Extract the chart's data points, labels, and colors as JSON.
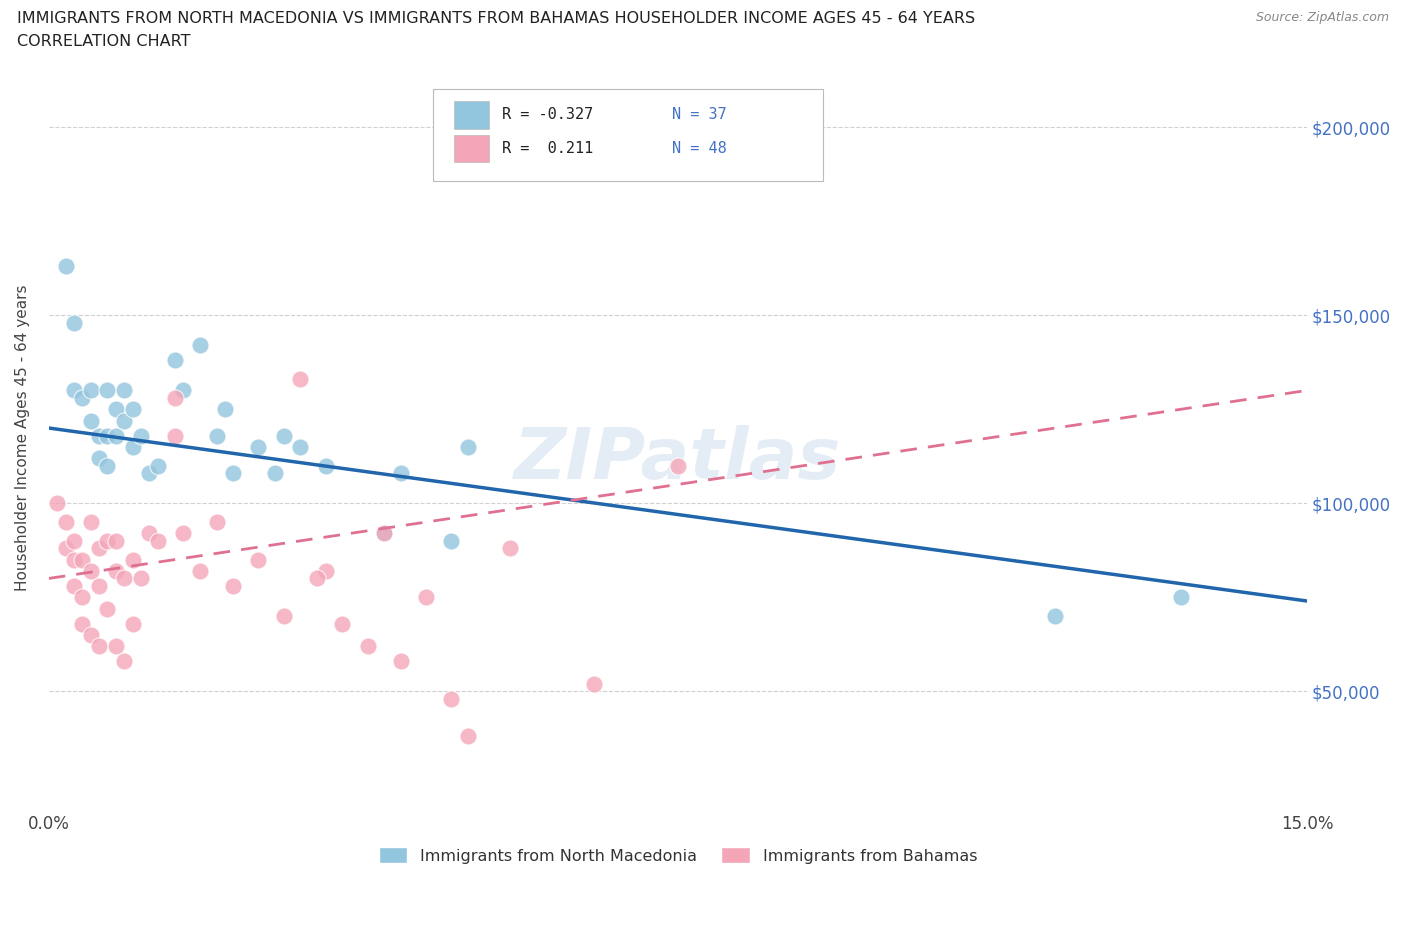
{
  "title_line1": "IMMIGRANTS FROM NORTH MACEDONIA VS IMMIGRANTS FROM BAHAMAS HOUSEHOLDER INCOME AGES 45 - 64 YEARS",
  "title_line2": "CORRELATION CHART",
  "source_text": "Source: ZipAtlas.com",
  "ylabel": "Householder Income Ages 45 - 64 years",
  "xlim": [
    0.0,
    0.15
  ],
  "ylim": [
    20000,
    215000
  ],
  "xticks": [
    0.0,
    0.03,
    0.06,
    0.09,
    0.12,
    0.15
  ],
  "xticklabels": [
    "0.0%",
    "",
    "",
    "",
    "",
    "15.0%"
  ],
  "ytick_positions": [
    50000,
    100000,
    150000,
    200000
  ],
  "ytick_labels": [
    "$50,000",
    "$100,000",
    "$150,000",
    "$200,000"
  ],
  "background_color": "#ffffff",
  "watermark": "ZIPatlas",
  "legend_r1": "R = -0.327",
  "legend_n1": "N = 37",
  "legend_r2": "R =  0.211",
  "legend_n2": "N = 48",
  "color_blue": "#92c5de",
  "color_pink": "#f4a6b8",
  "color_blue_line": "#2166ac",
  "color_pink_line": "#e07090",
  "nm_line_x0": 0.0,
  "nm_line_y0": 120000,
  "nm_line_x1": 0.15,
  "nm_line_y1": 74000,
  "bh_line_x0": 0.0,
  "bh_line_y0": 80000,
  "bh_line_x1": 0.15,
  "bh_line_y1": 130000,
  "north_macedonia_x": [
    0.002,
    0.003,
    0.003,
    0.004,
    0.005,
    0.005,
    0.006,
    0.006,
    0.007,
    0.007,
    0.007,
    0.008,
    0.008,
    0.009,
    0.009,
    0.01,
    0.01,
    0.011,
    0.012,
    0.013,
    0.015,
    0.016,
    0.018,
    0.02,
    0.021,
    0.022,
    0.025,
    0.027,
    0.028,
    0.03,
    0.033,
    0.04,
    0.042,
    0.05,
    0.12,
    0.135,
    0.048
  ],
  "north_macedonia_y": [
    163000,
    148000,
    130000,
    128000,
    130000,
    122000,
    118000,
    112000,
    130000,
    118000,
    110000,
    125000,
    118000,
    130000,
    122000,
    125000,
    115000,
    118000,
    108000,
    110000,
    138000,
    130000,
    142000,
    118000,
    125000,
    108000,
    115000,
    108000,
    118000,
    115000,
    110000,
    92000,
    108000,
    115000,
    70000,
    75000,
    90000
  ],
  "bahamas_x": [
    0.001,
    0.002,
    0.002,
    0.003,
    0.003,
    0.003,
    0.004,
    0.004,
    0.004,
    0.005,
    0.005,
    0.005,
    0.006,
    0.006,
    0.006,
    0.007,
    0.007,
    0.008,
    0.008,
    0.008,
    0.009,
    0.009,
    0.01,
    0.01,
    0.011,
    0.012,
    0.013,
    0.015,
    0.015,
    0.016,
    0.018,
    0.02,
    0.022,
    0.025,
    0.028,
    0.03,
    0.033,
    0.035,
    0.038,
    0.04,
    0.042,
    0.048,
    0.05,
    0.055,
    0.065,
    0.075,
    0.032,
    0.045
  ],
  "bahamas_y": [
    100000,
    95000,
    88000,
    90000,
    85000,
    78000,
    85000,
    75000,
    68000,
    95000,
    82000,
    65000,
    88000,
    78000,
    62000,
    90000,
    72000,
    82000,
    90000,
    62000,
    80000,
    58000,
    85000,
    68000,
    80000,
    92000,
    90000,
    118000,
    128000,
    92000,
    82000,
    95000,
    78000,
    85000,
    70000,
    133000,
    82000,
    68000,
    62000,
    92000,
    58000,
    48000,
    38000,
    88000,
    52000,
    110000,
    80000,
    75000
  ]
}
